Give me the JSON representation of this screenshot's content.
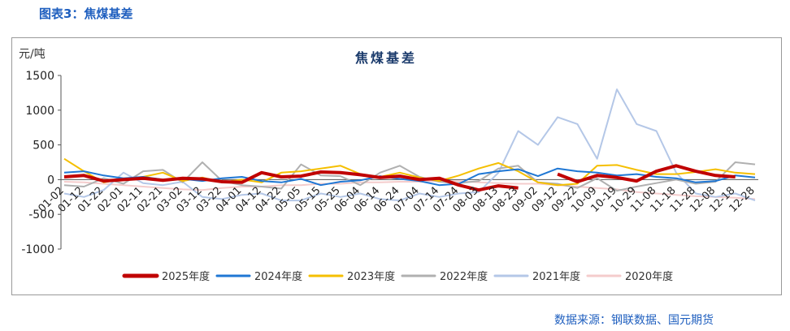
{
  "figure_title": "图表3：焦煤基差",
  "source": "数据来源：钢联数据、国元期货",
  "chart_data": {
    "type": "line",
    "title": "焦煤基差",
    "ylabel": "元/吨",
    "ylim": [
      -1000,
      1500
    ],
    "yticks": [
      -1000,
      -500,
      0,
      500,
      1000,
      1500
    ],
    "grid": false,
    "legend_position": "bottom",
    "categories": [
      "01-02",
      "01-12",
      "01-22",
      "02-01",
      "02-11",
      "02-21",
      "03-02",
      "03-12",
      "03-22",
      "04-01",
      "04-12",
      "04-22",
      "05-05",
      "05-15",
      "05-25",
      "06-04",
      "06-14",
      "06-24",
      "07-04",
      "07-14",
      "07-24",
      "08-03",
      "08-13",
      "08-23",
      "09-02",
      "09-12",
      "09-22",
      "10-09",
      "10-19",
      "10-29",
      "11-08",
      "11-18",
      "11-28",
      "12-08",
      "12-18",
      "12-28"
    ],
    "series": [
      {
        "name": "2025年度",
        "color": "#c00000",
        "width": 4,
        "values": [
          40,
          60,
          -20,
          0,
          20,
          -10,
          20,
          10,
          -30,
          -40,
          100,
          40,
          50,
          110,
          100,
          70,
          30,
          50,
          0,
          20,
          -80,
          -150,
          -90,
          -120,
          null,
          80,
          -30,
          60,
          30,
          -20,
          120,
          200,
          120,
          60,
          40,
          null
        ]
      },
      {
        "name": "2024年度",
        "color": "#1f77d4",
        "width": 2,
        "values": [
          100,
          120,
          60,
          20,
          40,
          0,
          10,
          -20,
          20,
          40,
          -20,
          -40,
          10,
          -80,
          -30,
          -10,
          50,
          10,
          -20,
          -80,
          -60,
          80,
          120,
          150,
          50,
          160,
          120,
          100,
          60,
          80,
          40,
          20,
          -40,
          -20,
          60,
          30
        ]
      },
      {
        "name": "2023年度",
        "color": "#f5bf00",
        "width": 2,
        "values": [
          300,
          120,
          -40,
          10,
          40,
          100,
          -20,
          30,
          -40,
          0,
          -40,
          100,
          120,
          160,
          200,
          80,
          40,
          100,
          30,
          -20,
          60,
          160,
          240,
          120,
          -40,
          -80,
          -60,
          200,
          210,
          140,
          80,
          80,
          110,
          150,
          100,
          80
        ]
      },
      {
        "name": "2022年度",
        "color": "#b0b0b0",
        "width": 2,
        "values": [
          -80,
          -100,
          20,
          -60,
          120,
          140,
          -40,
          250,
          -20,
          -80,
          -100,
          -130,
          220,
          60,
          50,
          -80,
          100,
          200,
          40,
          -30,
          -50,
          -20,
          160,
          200,
          -40,
          -60,
          -120,
          20,
          -160,
          -100,
          -50,
          0,
          -60,
          -30,
          250,
          220
        ]
      },
      {
        "name": "2021年度",
        "color": "#b4c7e7",
        "width": 2,
        "values": [
          -200,
          -250,
          -150,
          100,
          -50,
          -80,
          -30,
          -250,
          -280,
          -220,
          -200,
          -300,
          -300,
          -200,
          -250,
          -200,
          -280,
          -300,
          -200,
          -250,
          -200,
          -180,
          100,
          700,
          500,
          900,
          800,
          300,
          1300,
          800,
          700,
          100,
          -200,
          -250,
          -200,
          -300
        ]
      },
      {
        "name": "2020年度",
        "color": "#f4cccc",
        "width": 2,
        "values": [
          -30,
          -40,
          -60,
          -80,
          -100,
          -120,
          -140,
          -150,
          -120,
          -100,
          -100,
          -80,
          -80,
          -60,
          -60,
          -40,
          -40,
          -30,
          -30,
          -20,
          -20,
          -40,
          -50,
          -60,
          -60,
          -80,
          -100,
          -120,
          -140,
          -180,
          -200,
          -220,
          -240,
          -250,
          -260,
          -280
        ]
      }
    ]
  }
}
